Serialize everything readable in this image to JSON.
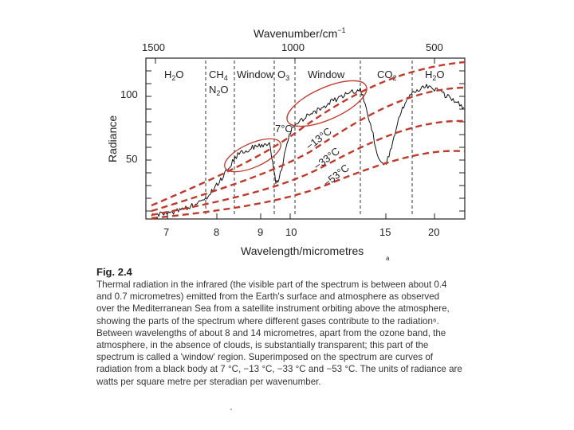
{
  "figure": {
    "top_axis_title": "Wavenumber/cm",
    "top_axis_exponent": "−1",
    "top_ticks": [
      {
        "label": "1500",
        "wavenumber": 1500
      },
      {
        "label": "1000",
        "wavenumber": 1000
      },
      {
        "label": "500",
        "wavenumber": 500
      }
    ],
    "y_axis_title": "Radiance",
    "y_ticks": [
      {
        "label": "100",
        "value": 100
      },
      {
        "label": "50",
        "value": 50
      }
    ],
    "x_axis_title": "Wavelength/micrometres",
    "x_ticks": [
      {
        "label": "7",
        "value": 7
      },
      {
        "label": "8",
        "value": 8
      },
      {
        "label": "9",
        "value": 9
      },
      {
        "label": "10",
        "value": 10
      },
      {
        "label": "15",
        "value": 15
      },
      {
        "label": "20",
        "value": 20
      }
    ],
    "band_labels": {
      "h2o_left": "H",
      "h2o_left_sub": "2",
      "h2o_left_end": "O",
      "ch4": "CH",
      "ch4_sub": "4",
      "n2o": "N",
      "n2o_sub": "2",
      "n2o_end": "O",
      "window1": "Window",
      "o3": "O",
      "o3_sub": "3",
      "window2": "Window",
      "co2": "CO",
      "co2_sub": "2",
      "h2o_right": "H",
      "h2o_right_sub": "2",
      "h2o_right_end": "O"
    },
    "curve_labels": [
      "7°C",
      "−13°C",
      "−33°C",
      "−53°C"
    ],
    "stray_mark": "a",
    "accent_colors": {
      "blackbody_curves": "#c0392b",
      "window_circles": "#c0392b",
      "spectrum": "#111111"
    }
  },
  "caption": {
    "title": "Fig. 2.4",
    "lines": [
      "Thermal radiation in the infrared (the visible part of the spectrum is between about 0.4",
      "and 0.7 micrometres) emitted from the Earth's surface and atmosphere as observed",
      "over the Mediterranean Sea from a satellite instrument orbiting above the atmosphere,",
      "showing the parts of the spectrum where different gases contribute to the radiation⁶.",
      "Between wavelengths of about 8 and 14 micrometres, apart from the ozone band, the",
      "atmosphere, in the absence of clouds, is substantially transparent; this part of the",
      "spectrum is called a 'window' region. Superimposed on the spectrum are curves of",
      "radiation from a black body at 7 °C, −13 °C, −33 °C and −53 °C. The units of radiance are",
      "watts per square metre per steradian per wavenumber."
    ]
  },
  "bottom_mark": "'"
}
